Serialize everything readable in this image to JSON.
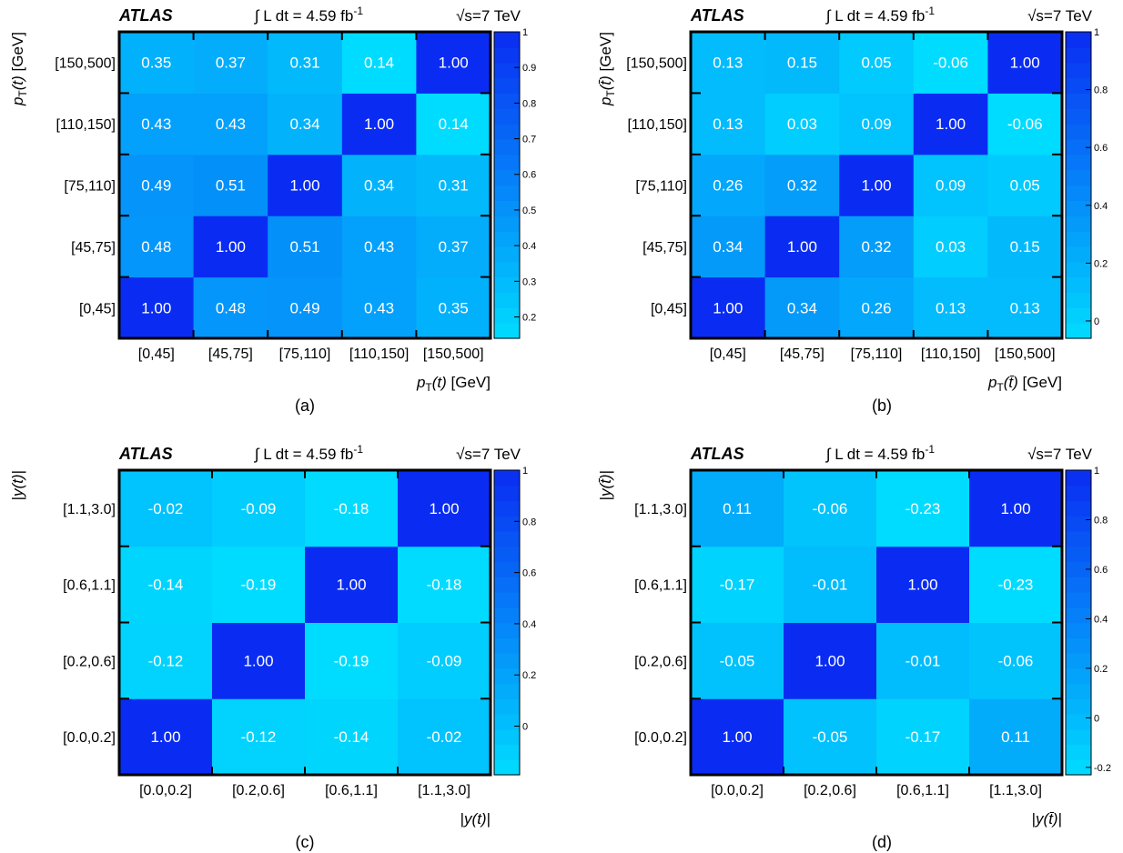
{
  "panel_common": {
    "experiment": "ATLAS",
    "lumi_prefix": "∫ L dt = 4.59 fb",
    "lumi_exp": "-1",
    "energy": "√s=7 TeV"
  },
  "colors": {
    "low": "#00dcff",
    "high": "#0a2cf2",
    "frame": "#000000",
    "cell_text": "#ffffff"
  },
  "chart_data": [
    {
      "type": "heatmap",
      "caption": "(a)",
      "xlabel": "p_T(t) [GeV]",
      "ylabel": "p_T(t) [GeV]",
      "x_tick_labels": [
        "[0,45]",
        "[45,75]",
        "[75,110]",
        "[110,150]",
        "[150,500]"
      ],
      "y_tick_labels": [
        "[0,45]",
        "[45,75]",
        "[75,110]",
        "[110,150]",
        "[150,500]"
      ],
      "matrix": [
        [
          1.0,
          0.48,
          0.49,
          0.43,
          0.35
        ],
        [
          0.48,
          1.0,
          0.51,
          0.43,
          0.37
        ],
        [
          0.49,
          0.51,
          1.0,
          0.34,
          0.31
        ],
        [
          0.43,
          0.43,
          0.34,
          1.0,
          0.14
        ],
        [
          0.35,
          0.37,
          0.31,
          0.14,
          1.0
        ]
      ],
      "colorbar_range": [
        0.14,
        1.0
      ],
      "colorbar_ticks": [
        1,
        0.9,
        0.8,
        0.7,
        0.6,
        0.5,
        0.4,
        0.3,
        0.2
      ]
    },
    {
      "type": "heatmap",
      "caption": "(b)",
      "xlabel": "p_T(t̄) [GeV]",
      "ylabel": "p_T(t̄) [GeV]",
      "x_tick_labels": [
        "[0,45]",
        "[45,75]",
        "[75,110]",
        "[110,150]",
        "[150,500]"
      ],
      "y_tick_labels": [
        "[0,45]",
        "[45,75]",
        "[75,110]",
        "[110,150]",
        "[150,500]"
      ],
      "matrix": [
        [
          1.0,
          0.34,
          0.26,
          0.13,
          0.13
        ],
        [
          0.34,
          1.0,
          0.32,
          0.03,
          0.15
        ],
        [
          0.26,
          0.32,
          1.0,
          0.09,
          0.05
        ],
        [
          0.13,
          0.03,
          0.09,
          1.0,
          -0.06
        ],
        [
          0.13,
          0.15,
          0.05,
          -0.06,
          1.0
        ]
      ],
      "colorbar_range": [
        -0.06,
        1.0
      ],
      "colorbar_ticks": [
        1,
        0.8,
        0.6,
        0.4,
        0.2,
        0
      ]
    },
    {
      "type": "heatmap",
      "caption": "(c)",
      "xlabel": "|y(t)|",
      "ylabel": "|y(t)|",
      "x_tick_labels": [
        "[0.0,0.2]",
        "[0.2,0.6]",
        "[0.6,1.1]",
        "[1.1,3.0]"
      ],
      "y_tick_labels": [
        "[0.0,0.2]",
        "[0.2,0.6]",
        "[0.6,1.1]",
        "[1.1,3.0]"
      ],
      "matrix": [
        [
          1.0,
          -0.12,
          -0.14,
          -0.02
        ],
        [
          -0.12,
          1.0,
          -0.19,
          -0.09
        ],
        [
          -0.14,
          -0.19,
          1.0,
          -0.18
        ],
        [
          -0.02,
          -0.09,
          -0.18,
          1.0
        ]
      ],
      "colorbar_range": [
        -0.19,
        1.0
      ],
      "colorbar_ticks": [
        1,
        0.8,
        0.6,
        0.4,
        0.2,
        0
      ]
    },
    {
      "type": "heatmap",
      "caption": "(d)",
      "xlabel": "|y(t̄)|",
      "ylabel": "|y(t̄)|",
      "x_tick_labels": [
        "[0.0,0.2]",
        "[0.2,0.6]",
        "[0.6,1.1]",
        "[1.1,3.0]"
      ],
      "y_tick_labels": [
        "[0.0,0.2]",
        "[0.2,0.6]",
        "[0.6,1.1]",
        "[1.1,3.0]"
      ],
      "matrix": [
        [
          1.0,
          -0.05,
          -0.17,
          0.11
        ],
        [
          -0.05,
          1.0,
          -0.01,
          -0.06
        ],
        [
          -0.17,
          -0.01,
          1.0,
          -0.23
        ],
        [
          0.11,
          -0.06,
          -0.23,
          1.0
        ]
      ],
      "colorbar_range": [
        -0.23,
        1.0
      ],
      "colorbar_ticks": [
        1,
        0.8,
        0.6,
        0.4,
        0.2,
        0,
        -0.2
      ]
    }
  ]
}
